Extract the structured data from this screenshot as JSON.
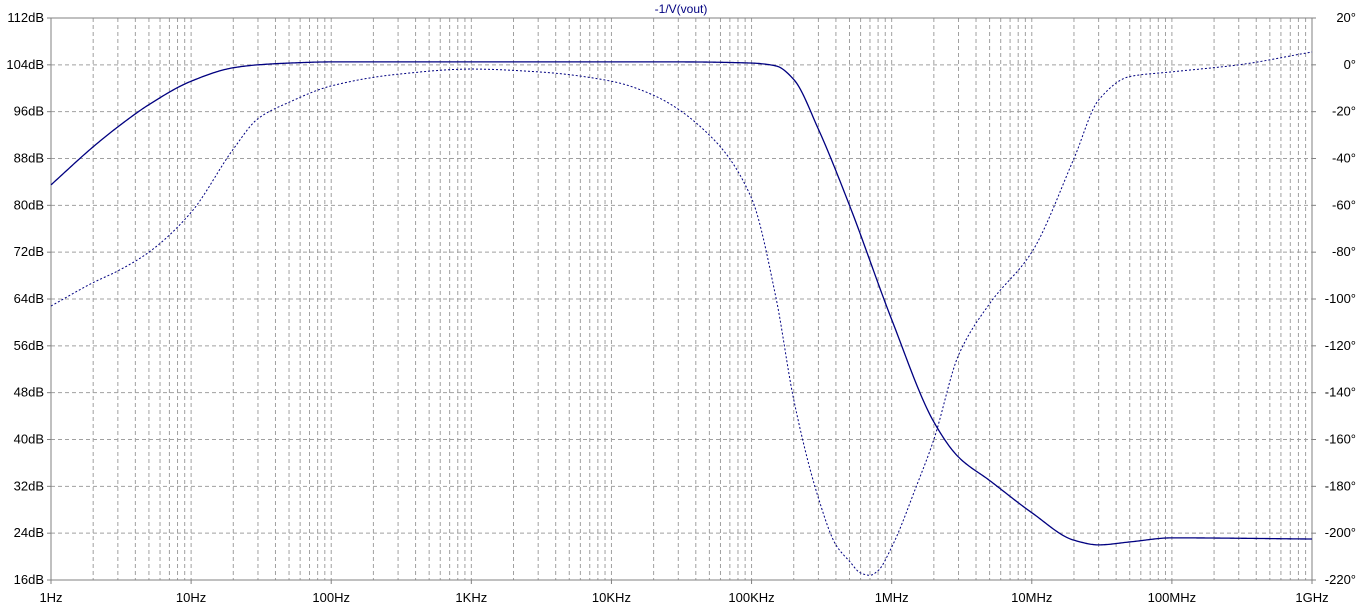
{
  "chart_data": {
    "type": "line",
    "title": "-1/V(vout)",
    "x_scale": "log",
    "x_ticks": [
      "1Hz",
      "10Hz",
      "100Hz",
      "1KHz",
      "10KHz",
      "100KHz",
      "1MHz",
      "10MHz",
      "100MHz",
      "1GHz"
    ],
    "x_tick_values": [
      1,
      10,
      100,
      1000,
      10000,
      100000,
      1000000,
      10000000,
      100000000,
      1000000000
    ],
    "xlim": [
      1,
      1000000000
    ],
    "y_left_ticks": [
      "112dB",
      "104dB",
      "96dB",
      "88dB",
      "80dB",
      "72dB",
      "64dB",
      "56dB",
      "48dB",
      "40dB",
      "32dB",
      "24dB",
      "16dB"
    ],
    "y_left_tick_values": [
      112,
      104,
      96,
      88,
      80,
      72,
      64,
      56,
      48,
      40,
      32,
      24,
      16
    ],
    "y_left_lim": [
      16,
      112
    ],
    "y_right_ticks": [
      "20°",
      "0°",
      "-20°",
      "-40°",
      "-60°",
      "-80°",
      "-100°",
      "-120°",
      "-140°",
      "-160°",
      "-180°",
      "-200°",
      "-220°"
    ],
    "y_right_tick_values": [
      20,
      0,
      -20,
      -40,
      -60,
      -80,
      -100,
      -120,
      -140,
      -160,
      -180,
      -200,
      -220
    ],
    "y_right_lim": [
      -220,
      20
    ],
    "grid": true,
    "colors": {
      "trace": "#000080",
      "title": "#000080",
      "axis": "#808080",
      "grid": "#a0a0a0"
    },
    "series": [
      {
        "quantity": "magnitude",
        "axis": "left",
        "style": "solid",
        "x": [
          1,
          2,
          3,
          5,
          10,
          20,
          30,
          50,
          100,
          1000,
          10000,
          30000,
          100000,
          150000,
          200000,
          300000,
          500000,
          1000000,
          2000000,
          3000000,
          5000000,
          10000000,
          20000000,
          30000000,
          50000000,
          100000000,
          1000000000
        ],
        "values": [
          83.5,
          90.0,
          93.4,
          97.2,
          101.2,
          103.5,
          104.0,
          104.3,
          104.5,
          104.5,
          104.5,
          104.5,
          104.3,
          103.8,
          101.5,
          93.0,
          80.0,
          60.5,
          43.0,
          37.0,
          33.0,
          27.5,
          22.8,
          22.0,
          22.5,
          23.2,
          23.0
        ]
      },
      {
        "quantity": "phase",
        "axis": "right",
        "style": "dotted",
        "x": [
          1,
          2,
          3,
          5,
          10,
          20,
          30,
          50,
          100,
          300,
          1000,
          3000,
          10000,
          20000,
          50000,
          100000,
          150000,
          200000,
          300000,
          400000,
          500000,
          600000,
          700000,
          800000,
          1000000,
          1500000,
          2000000,
          3000000,
          5000000,
          10000000,
          20000000,
          30000000,
          50000000,
          100000000,
          300000000,
          1000000000
        ],
        "values": [
          -103,
          -93,
          -88,
          -80,
          -63,
          -36,
          -23,
          -16,
          -9,
          -4,
          -1.8,
          -3,
          -7,
          -13,
          -30,
          -57,
          -100,
          -143,
          -185,
          -205,
          -212,
          -217,
          -218,
          -216,
          -206,
          -180,
          -160,
          -124,
          -102,
          -80,
          -40,
          -15,
          -5,
          -3,
          0,
          5.5
        ]
      }
    ]
  }
}
